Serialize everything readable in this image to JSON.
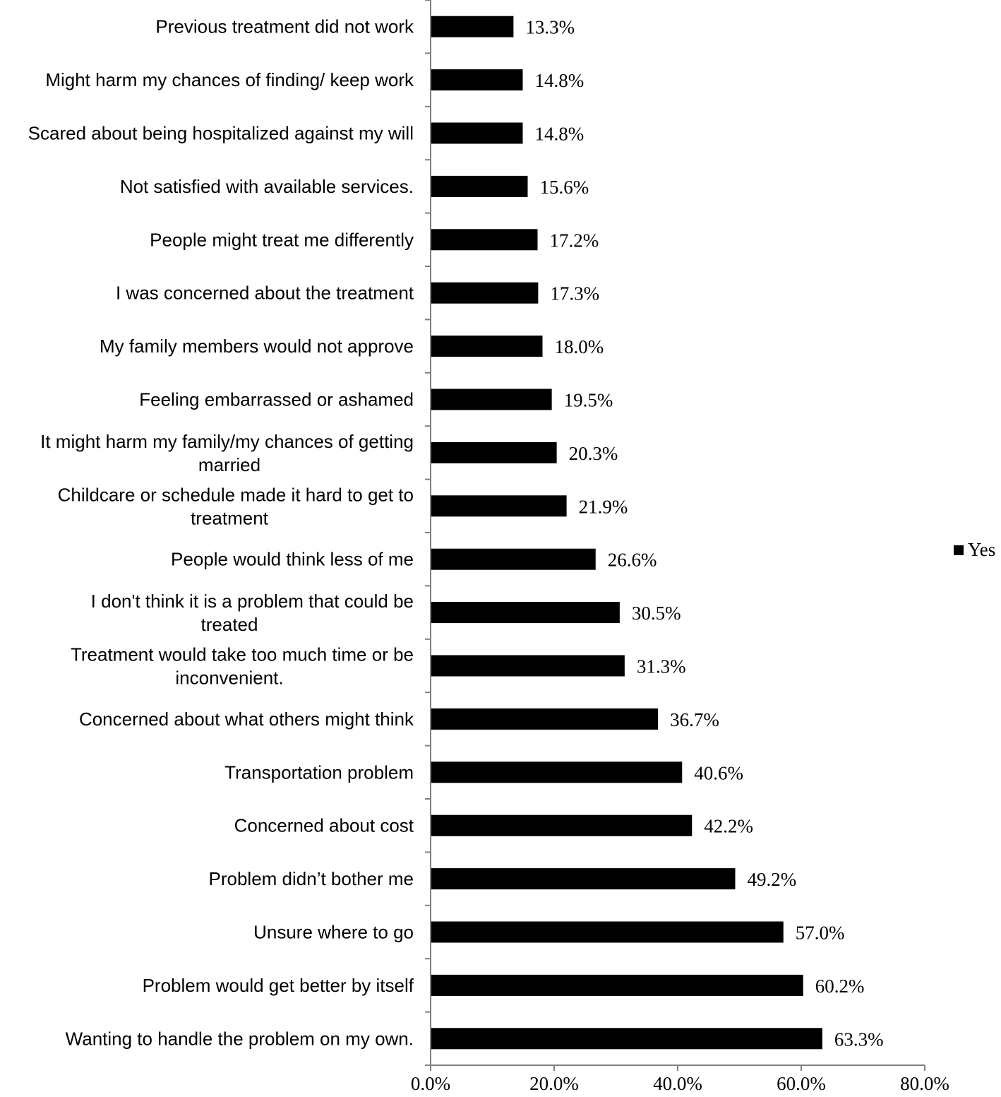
{
  "chart_data": {
    "type": "bar",
    "orientation": "horizontal",
    "categories": [
      "Previous treatment did not work",
      "Might harm my chances of finding/ keep work",
      "Scared about being hospitalized against my will",
      "Not satisfied with available services.",
      "People might treat me differently",
      "I was concerned about the treatment",
      "My family members would not approve",
      "Feeling embarrassed or ashamed",
      "It might harm  my family/my chances of getting married",
      "Childcare or schedule made it hard to get to treatment",
      "People would think less of me",
      "I don't  think it is a problem that could be treated",
      "Treatment would take too much time or be inconvenient.",
      "Concerned about what others might think",
      "Transportation problem",
      "Concerned about cost",
      "Problem didn’t bother me",
      "Unsure where to go",
      "Problem would get better by itself",
      "Wanting to handle the problem on my own."
    ],
    "series": [
      {
        "name": "Yes",
        "values": [
          13.3,
          14.8,
          14.8,
          15.6,
          17.2,
          17.3,
          18.0,
          19.5,
          20.3,
          21.9,
          26.6,
          30.5,
          31.3,
          36.7,
          40.6,
          42.2,
          49.2,
          57.0,
          60.2,
          63.3
        ],
        "labels": [
          "13.3%",
          "14.8%",
          "14.8%",
          "15.6%",
          "17.2%",
          "17.3%",
          "18.0%",
          "19.5%",
          "20.3%",
          "21.9%",
          "26.6%",
          "30.5%",
          "31.3%",
          "36.7%",
          "40.6%",
          "42.2%",
          "49.2%",
          "57.0%",
          "60.2%",
          "63.3%"
        ],
        "color": "#000000"
      }
    ],
    "xlim": [
      0,
      80
    ],
    "xticks": [
      "0.0%",
      "20.0%",
      "40.0%",
      "60.0%",
      "80.0%"
    ],
    "title": "",
    "xlabel": "",
    "ylabel": "",
    "grid": false,
    "legend": "right"
  }
}
